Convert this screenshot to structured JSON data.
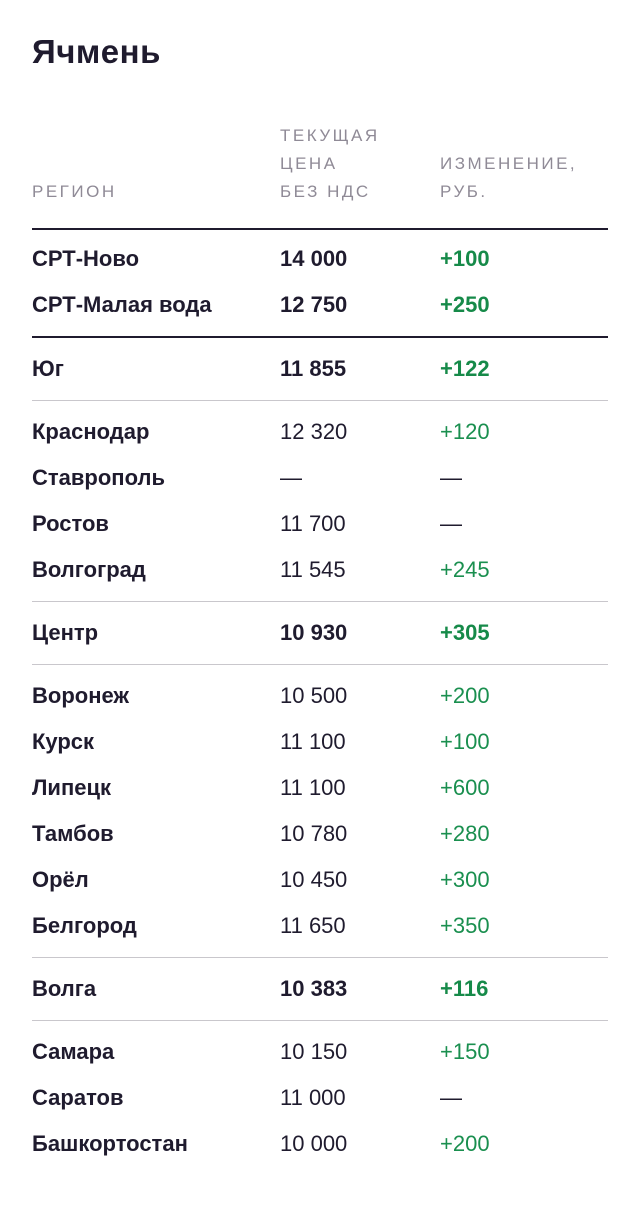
{
  "title": "Ячмень",
  "columns": {
    "region": "РЕГИОН",
    "price": "ТЕКУЩАЯ\nЦЕНА\nБЕЗ НДС",
    "change": "ИЗМЕНЕНИЕ,\nРУБ."
  },
  "groups": [
    {
      "rows": [
        {
          "region": "СРТ-Ново",
          "price": "14 000",
          "change": "+100"
        },
        {
          "region": "СРТ-Малая вода",
          "price": "12 750",
          "change": "+250"
        }
      ]
    },
    {
      "rows": [
        {
          "region": "Юг",
          "price": "11 855",
          "change": "+122"
        }
      ]
    },
    {
      "rows": [
        {
          "region": "Краснодар",
          "price": "12 320",
          "change": "+120"
        },
        {
          "region": "Ставрополь",
          "price": "—",
          "change": "—"
        },
        {
          "region": "Ростов",
          "price": "11 700",
          "change": "—"
        },
        {
          "region": "Волгоград",
          "price": "11 545",
          "change": "+245"
        }
      ]
    },
    {
      "rows": [
        {
          "region": "Центр",
          "price": "10 930",
          "change": "+305"
        }
      ]
    },
    {
      "rows": [
        {
          "region": "Воронеж",
          "price": "10 500",
          "change": "+200"
        },
        {
          "region": "Курск",
          "price": "11 100",
          "change": "+100"
        },
        {
          "region": "Липецк",
          "price": "11 100",
          "change": "+600"
        },
        {
          "region": "Тамбов",
          "price": "10 780",
          "change": "+280"
        },
        {
          "region": "Орёл",
          "price": "10 450",
          "change": "+300"
        },
        {
          "region": "Белгород",
          "price": "11 650",
          "change": "+350"
        }
      ]
    },
    {
      "rows": [
        {
          "region": "Волга",
          "price": "10 383",
          "change": "+116"
        }
      ]
    },
    {
      "rows": [
        {
          "region": "Самара",
          "price": "10 150",
          "change": "+150"
        },
        {
          "region": "Саратов",
          "price": "11 000",
          "change": "—"
        },
        {
          "region": "Башкортостан",
          "price": "10 000",
          "change": "+200"
        }
      ]
    }
  ],
  "colors": {
    "text": "#1f1b2e",
    "header": "#8f8a96",
    "positive": "#1a8f4f",
    "divider": "#c9c7cc"
  }
}
